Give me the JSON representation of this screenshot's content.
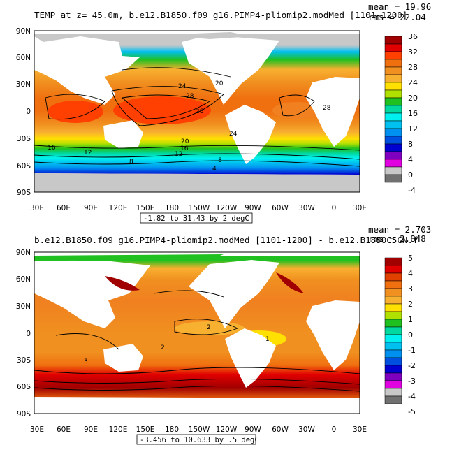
{
  "panels": [
    {
      "title": "TEMP at z=  45.0m, b.e12.B1850.f09_g16.PIMP4-pliomip2.modMed [1101-1200]",
      "stats": {
        "mean": "mean = 19.96",
        "rms": "rms = 22.04"
      },
      "range_label": "-1.82 to 31.43 by 2 degC",
      "lat_ticks": [
        "90N",
        "60N",
        "30N",
        "0",
        "30S",
        "60S",
        "90S"
      ],
      "lon_ticks": [
        "30E",
        "60E",
        "90E",
        "120E",
        "150E",
        "180",
        "150W",
        "120W",
        "90W",
        "60W",
        "30W",
        "0",
        "30E"
      ],
      "colorbar": {
        "labels": [
          "36",
          "32",
          "28",
          "24",
          "20",
          "16",
          "12",
          "8",
          "4",
          "0",
          "-4"
        ],
        "colors": [
          "#a00000",
          "#e00000",
          "#ff4000",
          "#f07010",
          "#f09020",
          "#f8b030",
          "#ffe000",
          "#b0e000",
          "#20c020",
          "#00d8a0",
          "#00f0f0",
          "#00c0f0",
          "#0090f0",
          "#0050e0",
          "#0000d0",
          "#8000c0",
          "#e000e0",
          "#c8c8c8",
          "#707070"
        ]
      },
      "contour_labels": [
        "24",
        "20",
        "28",
        "28",
        "28",
        "24",
        "20",
        "16",
        "16",
        "12",
        "12",
        "8",
        "8",
        "4"
      ]
    },
    {
      "title": "b.e12.B1850.f09_g16.PIMP4-pliomip2.modMed [1101-1200] - b.e12.B1850C5CN.f",
      "stats": {
        "mean": "mean = 2.703",
        "rms": "rms = 2.848"
      },
      "range_label": "-3.456 to 10.633 by .5 degC",
      "lat_ticks": [
        "90N",
        "60N",
        "30N",
        "0",
        "30S",
        "60S",
        "90S"
      ],
      "lon_ticks": [
        "30E",
        "60E",
        "90E",
        "120E",
        "150E",
        "180",
        "150W",
        "120W",
        "90W",
        "60W",
        "30W",
        "0",
        "30E"
      ],
      "colorbar": {
        "labels": [
          "5",
          "4",
          "3",
          "2",
          "1",
          "0",
          "-1",
          "-2",
          "-3",
          "-4",
          "-5"
        ],
        "colors": [
          "#a00000",
          "#e00000",
          "#e04000",
          "#f07010",
          "#f09020",
          "#f8b030",
          "#ffe000",
          "#b0e000",
          "#20c020",
          "#00d8a0",
          "#00f0f0",
          "#00c0f0",
          "#0090f0",
          "#0050e0",
          "#0000d0",
          "#8000c0",
          "#e000e0",
          "#c8c8c8",
          "#707070"
        ]
      },
      "contour_labels": [
        "2",
        "3",
        "2",
        "1"
      ]
    }
  ]
}
